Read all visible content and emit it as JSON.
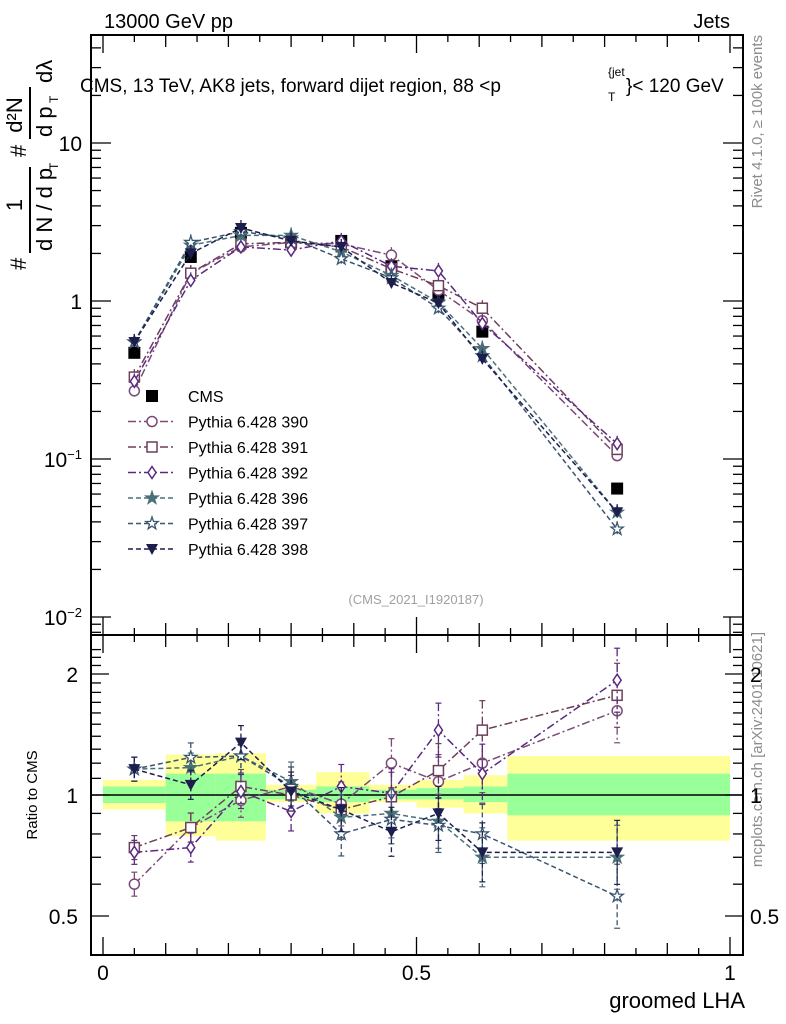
{
  "header": {
    "left": "13000 GeV pp",
    "right": "Jets"
  },
  "side_labels": {
    "rivet": "Rivet 4.1.0, ≥ 100k events",
    "mcplots": "mcplots.cern.ch [arXiv:2401.10621]"
  },
  "chart_data": [
    {
      "type": "line",
      "panel": "main",
      "title": "CMS, 13 TeV, AK8 jets, forward dijet region, 88 <p_T^{jet}< 120 GeV",
      "title_parts": {
        "main": "CMS, 13 TeV, AK8 jets, forward dijet region, 88 <p",
        "sup": "{jet",
        "sub": "T",
        "tail": "}< 120 GeV"
      },
      "ylabel": "1/dN/dpT # d²N/dpT dλ",
      "ylabel_parts": {
        "frac1_num": "1",
        "frac1_den": "d N / d p",
        "frac2_num": "d²N",
        "frac2_den": "d p",
        "tail": "dλ",
        "hash": "#",
        "sub": "T"
      },
      "yscale": "log",
      "ylim": [
        0.0075,
        50
      ],
      "xlim": [
        -0.01,
        1.01
      ],
      "ytick_labels": [
        {
          "value": 10,
          "text": "10"
        },
        {
          "value": 1,
          "text": "1"
        },
        {
          "value": 0.1,
          "base": "10",
          "exp": "−1"
        },
        {
          "value": 0.01,
          "base": "10",
          "exp": "−2"
        }
      ],
      "analysis_tag": "(CMS_2021_I1920187)",
      "legend_position": "center-left",
      "x": [
        0.05,
        0.14,
        0.22,
        0.3,
        0.38,
        0.46,
        0.535,
        0.605,
        0.82
      ],
      "series": [
        {
          "name": "CMS",
          "marker": "square-filled",
          "color": "#000000",
          "line": "none",
          "values": [
            0.47,
            1.9,
            2.7,
            2.35,
            2.4,
            1.66,
            1.08,
            0.64,
            0.065
          ]
        },
        {
          "name": "Pythia 6.428 390",
          "marker": "circle-open",
          "color": "#7b4a78",
          "line": "dashdot",
          "values": [
            0.27,
            1.5,
            2.2,
            2.35,
            2.3,
            1.95,
            1.17,
            0.75,
            0.105
          ]
        },
        {
          "name": "Pythia 6.428 391",
          "marker": "square-open",
          "color": "#6e3f5c",
          "line": "dashdot",
          "values": [
            0.33,
            1.5,
            2.3,
            2.35,
            2.2,
            1.6,
            1.25,
            0.9,
            0.115
          ]
        },
        {
          "name": "Pythia 6.428 392",
          "marker": "diamond-open",
          "color": "#5a2a80",
          "line": "dashdot",
          "values": [
            0.31,
            1.35,
            2.2,
            2.1,
            2.4,
            1.66,
            1.55,
            0.72,
            0.125
          ]
        },
        {
          "name": "Pythia 6.428 396",
          "marker": "star-filled",
          "color": "#4a7078",
          "line": "dashed",
          "values": [
            0.55,
            2.25,
            2.6,
            2.6,
            2.05,
            1.45,
            0.98,
            0.5,
            0.046
          ]
        },
        {
          "name": "Pythia 6.428 397",
          "marker": "star-open",
          "color": "#3a5570",
          "line": "dashed",
          "values": [
            0.55,
            2.35,
            2.75,
            2.5,
            1.85,
            1.4,
            0.9,
            0.45,
            0.036
          ]
        },
        {
          "name": "Pythia 6.428 398",
          "marker": "triangle-down-filled",
          "color": "#1e1e4e",
          "line": "dashed",
          "values": [
            0.55,
            2.0,
            2.9,
            2.4,
            2.2,
            1.3,
            0.97,
            0.43,
            0.046
          ]
        }
      ]
    },
    {
      "type": "line",
      "panel": "ratio",
      "ylabel": "Ratio to CMS",
      "xlabel": "groomed LHA",
      "yscale": "log",
      "ylim": [
        0.42,
        2.35
      ],
      "xlim": [
        -0.01,
        1.01
      ],
      "ytick_labels": [
        {
          "value": 2,
          "text": "2"
        },
        {
          "value": 1,
          "text": "1"
        },
        {
          "value": 0.5,
          "text": "0.5"
        }
      ],
      "xtick_labels": [
        {
          "value": 0,
          "text": "0"
        },
        {
          "value": 0.5,
          "text": "0.5"
        },
        {
          "value": 1,
          "text": "1"
        }
      ],
      "bands": {
        "edges": [
          0.0,
          0.1,
          0.18,
          0.26,
          0.34,
          0.425,
          0.5,
          0.575,
          0.645,
          1.0
        ],
        "inner": {
          "color": "#99ff99",
          "lo": [
            0.955,
            0.86,
            0.86,
            0.975,
            0.96,
            0.975,
            0.975,
            0.96,
            0.89
          ],
          "hi": [
            1.05,
            1.13,
            1.13,
            1.03,
            1.05,
            1.03,
            1.04,
            1.05,
            1.13
          ]
        },
        "outer": {
          "color": "#ffff99",
          "lo": [
            0.92,
            0.79,
            0.77,
            0.96,
            0.9,
            0.96,
            0.93,
            0.9,
            0.77
          ],
          "hi": [
            1.09,
            1.26,
            1.27,
            1.06,
            1.14,
            1.06,
            1.09,
            1.12,
            1.25
          ]
        }
      },
      "x": [
        0.05,
        0.14,
        0.22,
        0.3,
        0.38,
        0.46,
        0.535,
        0.605,
        0.82
      ],
      "series": [
        {
          "name": "Pythia 6.428 390",
          "marker": "circle-open",
          "color": "#7b4a78",
          "line": "dashdot",
          "values": [
            0.6,
            0.83,
            0.97,
            1.05,
            0.95,
            1.2,
            1.08,
            1.2,
            1.62
          ]
        },
        {
          "name": "Pythia 6.428 391",
          "marker": "square-open",
          "color": "#6e3f5c",
          "line": "dashdot",
          "values": [
            0.74,
            0.83,
            1.05,
            1.0,
            0.92,
            0.99,
            1.15,
            1.45,
            1.77
          ]
        },
        {
          "name": "Pythia 6.428 392",
          "marker": "diamond-open",
          "color": "#5a2a80",
          "line": "dashdot",
          "values": [
            0.72,
            0.74,
            1.02,
            0.91,
            1.05,
            1.01,
            1.45,
            1.13,
            1.93
          ]
        },
        {
          "name": "Pythia 6.428 396",
          "marker": "star-filled",
          "color": "#4a7078",
          "line": "dashed",
          "values": [
            1.16,
            1.17,
            1.25,
            1.08,
            0.88,
            0.9,
            0.86,
            0.7,
            0.7
          ]
        },
        {
          "name": "Pythia 6.428 397",
          "marker": "star-open",
          "color": "#3a5570",
          "line": "dashed",
          "values": [
            1.16,
            1.24,
            1.25,
            1.05,
            0.8,
            0.87,
            0.84,
            0.8,
            0.56
          ]
        },
        {
          "name": "Pythia 6.428 398",
          "marker": "triangle-down-filled",
          "color": "#1e1e4e",
          "line": "dashed",
          "values": [
            1.16,
            1.06,
            1.35,
            1.02,
            0.92,
            0.81,
            0.9,
            0.72,
            0.72
          ]
        }
      ]
    }
  ]
}
